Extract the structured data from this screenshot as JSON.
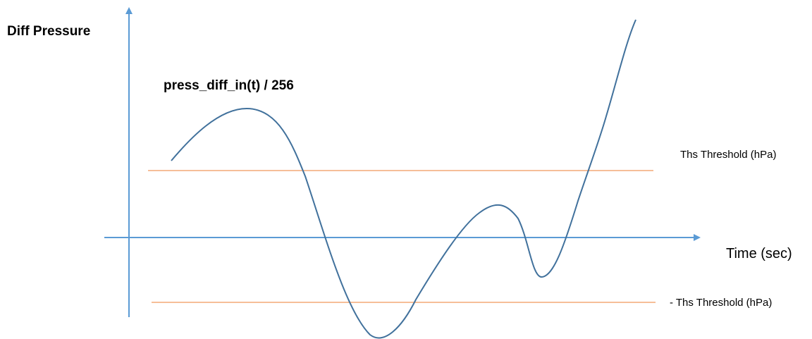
{
  "diagram": {
    "y_axis_label": "Diff Pressure",
    "x_axis_label": "Time (sec)",
    "curve_label": "press_diff_in(t) / 256",
    "threshold_upper_label": "Ths Threshold (hPa)",
    "threshold_lower_label": "- Ths Threshold (hPa)",
    "colors": {
      "axis": "#5b9bd5",
      "curve": "#41719c",
      "threshold": "#ed7d31"
    }
  }
}
